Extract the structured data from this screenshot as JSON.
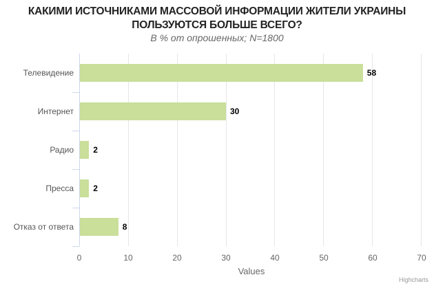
{
  "chart_data": {
    "type": "bar",
    "orientation": "horizontal",
    "title": "КАКИМИ ИСТОЧНИКАМИ МАССОВОЙ ИНФОРМАЦИИ ЖИТЕЛИ УКРАИНЫ ПОЛЬЗУЮТСЯ БОЛЬШЕ ВСЕГО?",
    "title_lines": [
      "КАКИМИ ИСТОЧНИКАМИ МАССОВОЙ ИНФОРМАЦИИ ЖИТЕЛИ УКРАИНЫ",
      "ПОЛЬЗУЮТСЯ БОЛЬШЕ ВСЕГО?"
    ],
    "subtitle": "В % от опрошенных; N=1800",
    "categories": [
      "Телевидение",
      "Интернет",
      "Радио",
      "Пресса",
      "Отказ от ответа"
    ],
    "values": [
      58,
      30,
      2,
      2,
      8
    ],
    "xlabel": "Values",
    "ylabel": "",
    "xlim": [
      0,
      70
    ],
    "xticks": [
      "0",
      "10",
      "20",
      "30",
      "40",
      "50",
      "60",
      "70"
    ],
    "grid": true,
    "legend": false,
    "bar_color": "#c9df9a",
    "data_labels": true
  },
  "credit": "Highcharts"
}
